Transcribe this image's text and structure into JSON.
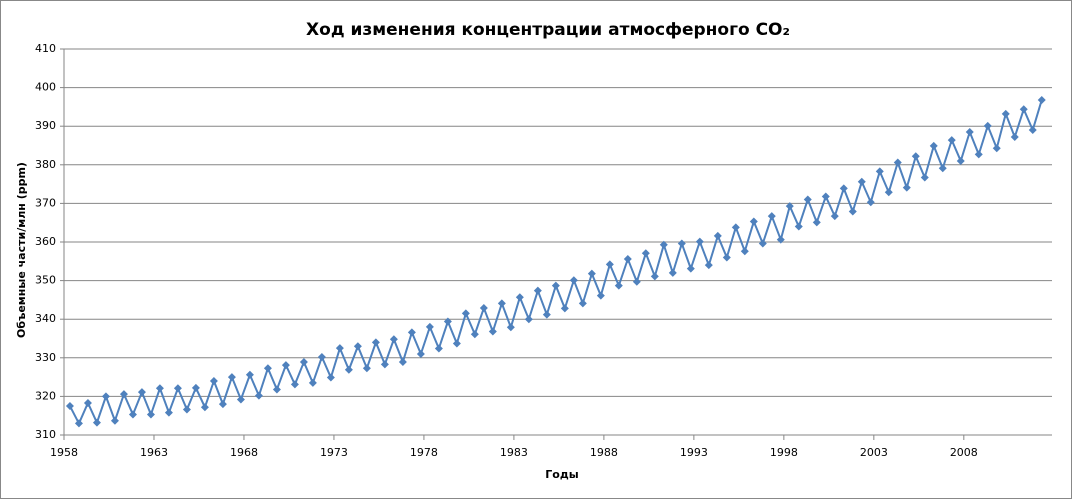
{
  "chart_data": {
    "type": "line",
    "title": "Ход изменения концентрации атмосферного CO₂",
    "x_label": "Годы",
    "y_label": "Объемные части/млн (ppm)",
    "color": "#4f81bd",
    "grid": true,
    "xlim": [
      1958,
      2012.9
    ],
    "ylim": [
      310,
      410
    ],
    "xticks": [
      1958,
      1963,
      1968,
      1973,
      1978,
      1983,
      1988,
      1993,
      1998,
      2003,
      2008
    ],
    "yticks": [
      310,
      320,
      330,
      340,
      350,
      360,
      370,
      380,
      390,
      400,
      410
    ],
    "x": [
      1958.33,
      1958.83,
      1959.33,
      1959.83,
      1960.33,
      1960.83,
      1961.33,
      1961.83,
      1962.33,
      1962.83,
      1963.33,
      1963.83,
      1964.33,
      1964.83,
      1965.33,
      1965.83,
      1966.33,
      1966.83,
      1967.33,
      1967.83,
      1968.33,
      1968.83,
      1969.33,
      1969.83,
      1970.33,
      1970.83,
      1971.33,
      1971.83,
      1972.33,
      1972.83,
      1973.33,
      1973.83,
      1974.33,
      1974.83,
      1975.33,
      1975.83,
      1976.33,
      1976.83,
      1977.33,
      1977.83,
      1978.33,
      1978.83,
      1979.33,
      1979.83,
      1980.33,
      1980.83,
      1981.33,
      1981.83,
      1982.33,
      1982.83,
      1983.33,
      1983.83,
      1984.33,
      1984.83,
      1985.33,
      1985.83,
      1986.33,
      1986.83,
      1987.33,
      1987.83,
      1988.33,
      1988.83,
      1989.33,
      1989.83,
      1990.33,
      1990.83,
      1991.33,
      1991.83,
      1992.33,
      1992.83,
      1993.33,
      1993.83,
      1994.33,
      1994.83,
      1995.33,
      1995.83,
      1996.33,
      1996.83,
      1997.33,
      1997.83,
      1998.33,
      1998.83,
      1999.33,
      1999.83,
      2000.33,
      2000.83,
      2001.33,
      2001.83,
      2002.33,
      2002.83,
      2003.33,
      2003.83,
      2004.33,
      2004.83,
      2005.33,
      2005.83,
      2006.33,
      2006.83,
      2007.33,
      2007.83,
      2008.33,
      2008.83,
      2009.33,
      2009.83,
      2010.33,
      2010.83,
      2011.33,
      2011.83,
      2012.33
    ],
    "values": [
      317.5,
      313.0,
      318.3,
      313.2,
      320.0,
      313.7,
      320.6,
      315.3,
      321.1,
      315.3,
      322.1,
      315.8,
      322.1,
      316.6,
      322.2,
      317.2,
      324.0,
      318.0,
      325.0,
      319.2,
      325.6,
      320.2,
      327.3,
      321.8,
      328.1,
      323.1,
      328.9,
      323.5,
      330.2,
      324.9,
      332.5,
      326.9,
      333.0,
      327.3,
      334.0,
      328.3,
      334.8,
      328.9,
      336.6,
      331.0,
      338.0,
      332.4,
      339.4,
      333.7,
      341.5,
      336.1,
      342.9,
      336.8,
      344.1,
      337.9,
      345.7,
      340.0,
      347.4,
      341.2,
      348.7,
      342.8,
      350.1,
      344.1,
      351.8,
      346.1,
      354.2,
      348.7,
      355.6,
      349.7,
      357.1,
      351.1,
      359.3,
      352.0,
      359.6,
      353.1,
      360.1,
      354.0,
      361.6,
      356.0,
      363.8,
      357.6,
      365.3,
      359.6,
      366.7,
      360.6,
      369.3,
      364.0,
      371.0,
      365.1,
      371.8,
      366.7,
      373.9,
      367.9,
      375.6,
      370.3,
      378.3,
      372.9,
      380.6,
      374.1,
      382.2,
      376.7,
      384.9,
      379.1,
      386.4,
      381.0,
      388.5,
      382.7,
      390.1,
      384.3,
      393.2,
      387.2,
      394.4,
      389.0,
      396.8
    ]
  }
}
